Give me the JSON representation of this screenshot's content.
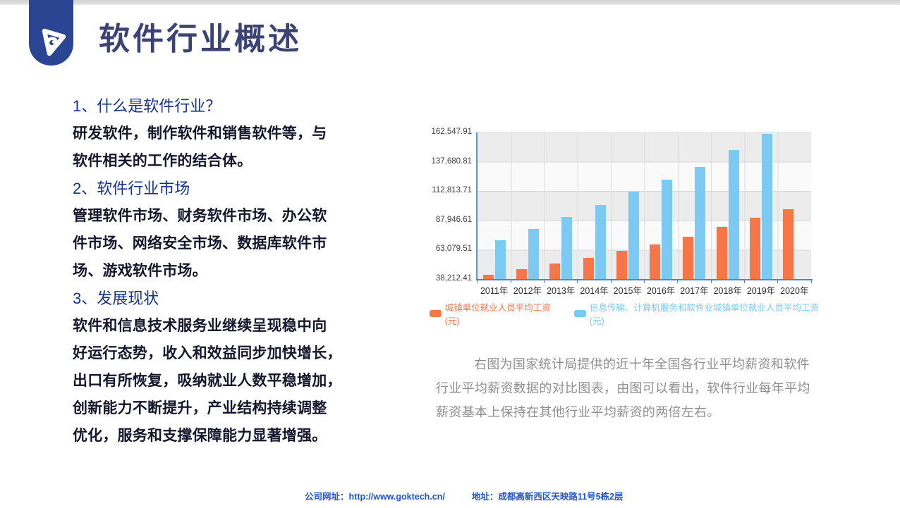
{
  "slide": {
    "title": "软件行业概述",
    "sections": [
      {
        "heading": "1、什么是软件行业？",
        "lines": [
          "研发软件，制作软件和销售软件等，与",
          "软件相关的工作的结合体。"
        ]
      },
      {
        "heading": "2、软件行业市场",
        "lines": [
          "管理软件市场、财务软件市场、办公软",
          "件市场、网络安全市场、数据库软件市",
          "场、游戏软件市场。"
        ]
      },
      {
        "heading": "3、发展现状",
        "lines": [
          "软件和信息技术服务业继续呈现稳中向",
          "好运行态势，收入和效益同步加快增长，",
          "出口有所恢复，吸纳就业人数平稳增加，",
          "创新能力不断提升，产业结构持续调整",
          "优化，服务和支撑保障能力显著增强。"
        ]
      }
    ],
    "caption": {
      "lines": [
        "右图为国家统计局提供的近十年全国各行业平均薪资和软件",
        "行业平均薪资数据的对比图表，由图可以看出，软件行业每年平均",
        "薪资基本上保持在其他行业平均薪资的两倍左右。"
      ]
    },
    "footer": {
      "website_label": "公司网址：",
      "website_url": "http://www.goktech.cn/",
      "address_label": "地址：",
      "address": "成都高新西区天映路11号5栋2层"
    }
  },
  "chart_data": {
    "type": "bar",
    "title": "",
    "xlabel": "",
    "ylabel": "",
    "categories": [
      "2011年",
      "2012年",
      "2013年",
      "2014年",
      "2015年",
      "2016年",
      "2017年",
      "2018年",
      "2019年",
      "2020年"
    ],
    "series": [
      {
        "name": "城镇单位就业人员平均工资(元)",
        "color": "#f5764a",
        "values": [
          41799,
          46769,
          51483,
          56360,
          62029,
          67569,
          74318,
          82461,
          90501,
          97379
        ]
      },
      {
        "name": "信息传输、计算机服务和软件业城镇单位就业人员平均工资(元)",
        "color": "#7cc9f2",
        "values": [
          70918,
          80510,
          90915,
          100845,
          112042,
          122478,
          133150,
          147678,
          161352,
          null
        ]
      }
    ],
    "y_ticks": [
      "38,212.41",
      "63,079.51",
      "87,946.61",
      "112,813.71",
      "137,680.81",
      "162,547.91"
    ],
    "ylim": [
      38212.41,
      162547.91
    ],
    "grid": "horizontal-bands",
    "legend_position": "bottom"
  },
  "colors": {
    "logo_blue": "#2a4591",
    "title_navy": "#3c4274",
    "heading_blue": "#15338e",
    "body_text": "#14162b",
    "bar_orange": "#f5764a",
    "bar_blue": "#7cc9f2",
    "axis_blue": "#5b9bd5",
    "caption_gray": "#8f8f8f",
    "footer_blue": "#2155c4"
  }
}
